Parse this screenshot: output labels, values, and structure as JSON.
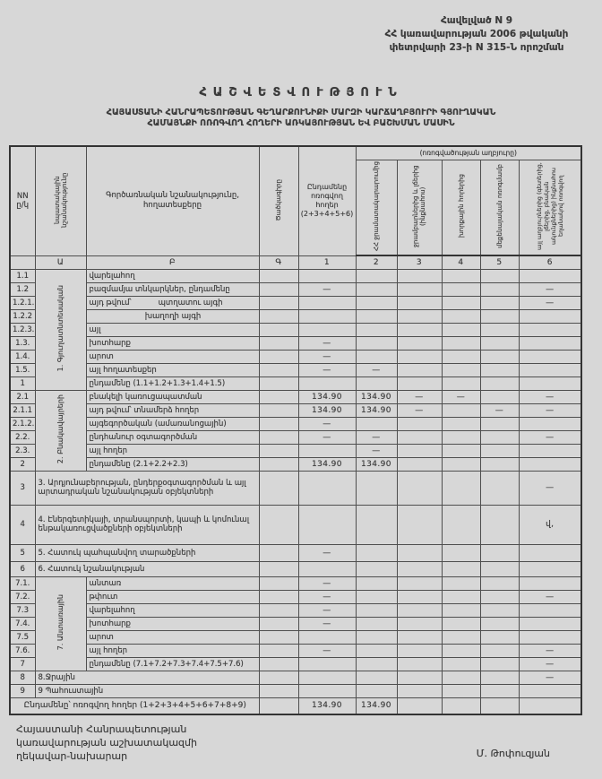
{
  "page": {
    "appendix_lines": [
      "Հավելված N 9",
      "ՀՀ կառավարության 2006 թվականի",
      "փետրվարի 23-ի N 315-Ն որոշման"
    ],
    "title": "ՀԱՇՎԵՏՎՈՒԹՅՈՒՆ",
    "subtitle_line1": "ՀԱՅԱՍՏԱՆԻ ՀԱՆՐԱՊԵՏՈՒԹՅԱՆ ԳԵՂԱՐՔՈՒՆԻՔԻ ՄԱՐԶԻ ԿԱՐՃԱՂԲՅՈՒՐԻ ԳՅՈՒՂԱԿԱՆ",
    "subtitle_line2": "ՀԱՄԱՅՆՔԻ ՈՌՈԳՎՈՂ ՀՈՂԵՐԻ ԱՌԿԱՅՈՒԹՅԱՆ ԵՎ ԲԱՇԽՄԱՆ ՄԱՍԻՆ"
  },
  "table": {
    "headers": {
      "nn": "NN ը/կ",
      "purpose": "նպատակային նշանակությունը",
      "landtypes": "Գործառնական նշանակությունը, հողատեսքերը",
      "code": "Ծածկագիրը",
      "total": "Ընդամենը ոռոգվող հողեր (2+3+4+5+6)",
      "source_group": "(ոռոգվածության աղբյուրը)",
      "sources": [
        "ՀՀ ջրամատակարարումից",
        "ջրամբարներից և լճերից (ինքնահոս)",
        "խորքային հորերից",
        "մեքենայական ոռոգմամբ",
        "այլ աղբյուրներից (գետերից, լճերից, բնական ակունքներից) ինքնահոս եղանակով ոռոգվող"
      ]
    },
    "index_row": [
      "",
      "Ա",
      "Բ",
      "Գ",
      "1",
      "2",
      "3",
      "4",
      "5",
      "6"
    ],
    "rows": [
      {
        "no": "1.1",
        "label": "վարելահող",
        "section": {
          "text": "1. Գյուղատնտեսական",
          "span": 9
        },
        "cells": [
          "",
          "",
          "",
          "",
          "",
          ""
        ]
      },
      {
        "no": "1.2",
        "label": "բազմամյա տնկարկներ, ընդամենը",
        "cells": [
          "—",
          "",
          "",
          "",
          "",
          "—"
        ]
      },
      {
        "no": "1.2.1.",
        "label": "այդ թվում՝",
        "label2": "պտղատու այգի",
        "cells": [
          "",
          "",
          "",
          "",
          "",
          "—"
        ]
      },
      {
        "no": "1.2.2",
        "label": "խաղողի այգի",
        "align": "center",
        "cells": [
          "",
          "",
          "",
          "",
          "",
          ""
        ]
      },
      {
        "no": "1.2.3.",
        "label": "այլ",
        "cells": [
          "",
          "",
          "",
          "",
          "",
          ""
        ]
      },
      {
        "no": "1.3.",
        "label": "խոտհարք",
        "cells": [
          "—",
          "",
          "",
          "",
          "",
          ""
        ]
      },
      {
        "no": "1.4.",
        "label": "արոտ",
        "cells": [
          "—",
          "",
          "",
          "",
          "",
          ""
        ]
      },
      {
        "no": "1.5.",
        "label": "այլ հողատեսքեր",
        "cells": [
          "—",
          "—",
          "",
          "",
          "",
          ""
        ]
      },
      {
        "no": "1",
        "label": "ընդամենը (1.1+1.2+1.3+1.4+1.5)",
        "cells": [
          "",
          "",
          "",
          "",
          "",
          ""
        ]
      },
      {
        "no": "2.1",
        "label": "բնակելի կառուցապատման",
        "section": {
          "text": "2. Բնակավայրերի",
          "span": 6
        },
        "cells": [
          "134.90",
          "134.90",
          "—",
          "—",
          "",
          "—"
        ]
      },
      {
        "no": "2.1.1",
        "label": "այդ թվում՝ տնամերձ հողեր",
        "cells": [
          "134.90",
          "134.90",
          "—",
          "",
          "—",
          "—"
        ]
      },
      {
        "no": "2.1.2.",
        "label": "այգեգործական (ամառանոցային)",
        "cells": [
          "—",
          "",
          "",
          "",
          "",
          ""
        ]
      },
      {
        "no": "2.2.",
        "label": "ընդհանուր օգտագործման",
        "cells": [
          "—",
          "—",
          "",
          "",
          "",
          "—"
        ]
      },
      {
        "no": "2.3.",
        "label": "այլ հողեր",
        "cells": [
          "",
          "—",
          "",
          "",
          "",
          ""
        ]
      },
      {
        "no": "2",
        "label": "ընդամենը (2.1+2.2+2.3)",
        "cells": [
          "134.90",
          "134.90",
          "",
          "",
          "",
          ""
        ]
      },
      {
        "no": "3",
        "label": "3. Արդյունաբերության, ընդերքօգտագործման և այլ արտադրական նշանակության օբյեկտների",
        "wide": true,
        "h": 38,
        "cells": [
          "",
          "",
          "",
          "",
          "",
          "—"
        ]
      },
      {
        "no": "4",
        "label": "4. Էներգետիկայի, տրանսպորտի, կապի և կոմունալ ենթակառուցվածքների օբյեկտների",
        "wide": true,
        "h": 44,
        "cells": [
          "",
          "",
          "",
          "",
          "",
          "վ,"
        ]
      },
      {
        "no": "5",
        "label": "5. Հատուկ պահպանվող տարածքների",
        "wide": true,
        "h": 19,
        "cells": [
          "—",
          "",
          "",
          "",
          "",
          ""
        ]
      },
      {
        "no": "6",
        "label": "6. Հատուկ նշանակության",
        "wide": true,
        "h": 17,
        "cells": [
          "",
          "",
          "",
          "",
          "",
          ""
        ]
      },
      {
        "no": "7.1.",
        "label": "անտառ",
        "section": {
          "text": "7. Անտառային",
          "span": 7
        },
        "cells": [
          "—",
          "",
          "",
          "",
          "",
          ""
        ]
      },
      {
        "no": "7.2.",
        "label": "թփուտ",
        "cells": [
          "—",
          "",
          "",
          "",
          "",
          "—"
        ]
      },
      {
        "no": "7.3",
        "label": "վարելահող",
        "cells": [
          "—",
          "",
          "",
          "",
          "",
          ""
        ]
      },
      {
        "no": "7.4.",
        "label": "խոտհարք",
        "cells": [
          "—",
          "",
          "",
          "",
          "",
          ""
        ]
      },
      {
        "no": "7.5",
        "label": "արոտ",
        "cells": [
          "",
          "",
          "",
          "",
          "",
          ""
        ]
      },
      {
        "no": "7.6.",
        "label": "այլ հողեր",
        "cells": [
          "—",
          "",
          "",
          "",
          "",
          "—"
        ]
      },
      {
        "no": "7",
        "label": "ընդամենը (7.1+7.2+7.3+7.4+7.5+7.6)",
        "cells": [
          "",
          "",
          "",
          "",
          "",
          "—"
        ]
      },
      {
        "no": "8",
        "label": "8.Ջրային",
        "wide": true,
        "cells": [
          "",
          "",
          "",
          "",
          "",
          "—"
        ]
      },
      {
        "no": "9",
        "label": "9 Պահուստային",
        "wide": true,
        "cells": [
          "",
          "",
          "",
          "",
          "",
          ""
        ]
      },
      {
        "no": "",
        "label": "Ընդամենը՝ ոռոգվող հողեր (1+2+3+4+5+6+7+8+9)",
        "full": true,
        "h": 19,
        "cells": [
          "134.90",
          "134.90",
          "",
          "",
          "",
          ""
        ]
      }
    ]
  },
  "footer": {
    "left_lines": [
      "Հայաստանի Հանրապետության",
      "կառավարության աշխատակազմի",
      "ղեկավար-նախարար"
    ],
    "signature": "Մ. Թոփուզյան"
  }
}
